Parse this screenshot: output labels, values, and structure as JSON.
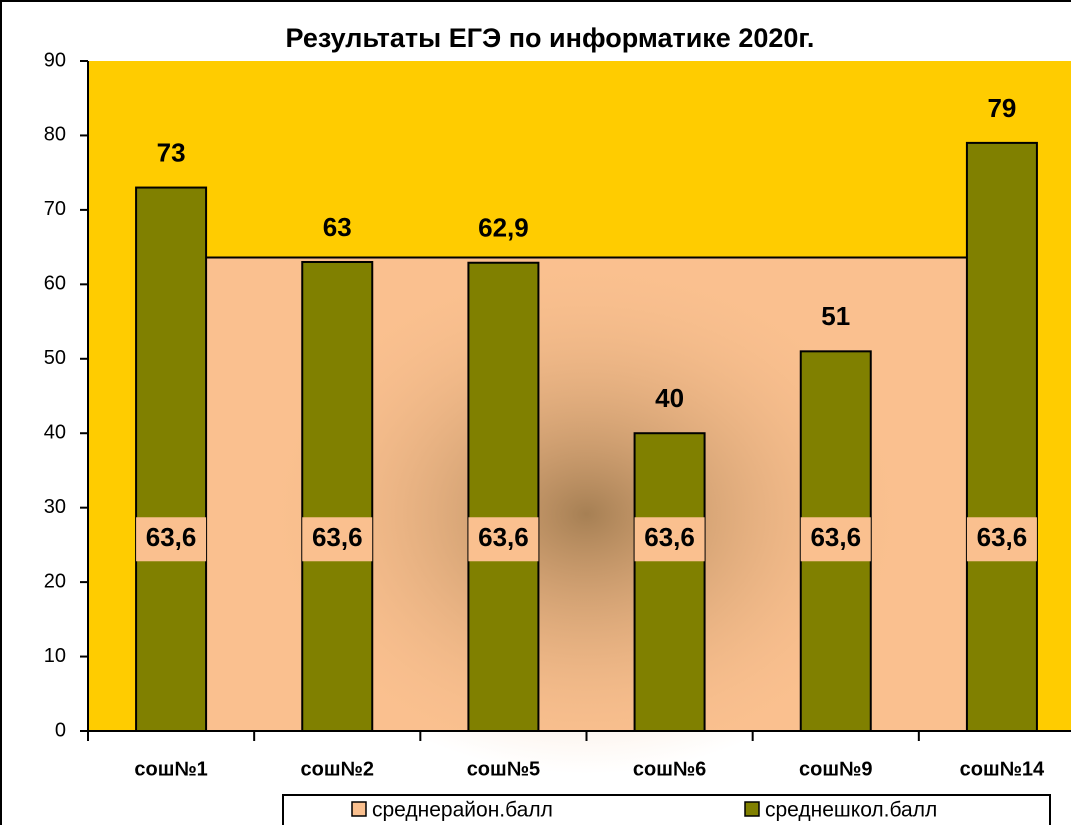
{
  "chart_data": {
    "type": "bar",
    "title": "Результаты ЕГЭ по информатике 2020г.",
    "categories": [
      "сош№1",
      "сош№2",
      "сош№5",
      "сош№6",
      "сош№9",
      "сош№14"
    ],
    "series": [
      {
        "name": "среднерайон.балл",
        "type": "area",
        "color": "#fac08f",
        "values": [
          63.6,
          63.6,
          63.6,
          63.6,
          63.6,
          63.6
        ],
        "value_labels": [
          "63,6",
          "63,6",
          "63,6",
          "63,6",
          "63,6",
          "63,6"
        ]
      },
      {
        "name": "среднешкол.балл",
        "type": "bar",
        "color": "#808000",
        "values": [
          73,
          63,
          62.9,
          40,
          51,
          79
        ],
        "value_labels": [
          "73",
          "63",
          "62,9",
          "40",
          "51",
          "79"
        ]
      }
    ],
    "ylim": [
      0,
      90
    ],
    "yticks": [
      0,
      10,
      20,
      30,
      40,
      50,
      60,
      70,
      80,
      90
    ],
    "background": "#ffcc00",
    "legend": "bottom"
  }
}
